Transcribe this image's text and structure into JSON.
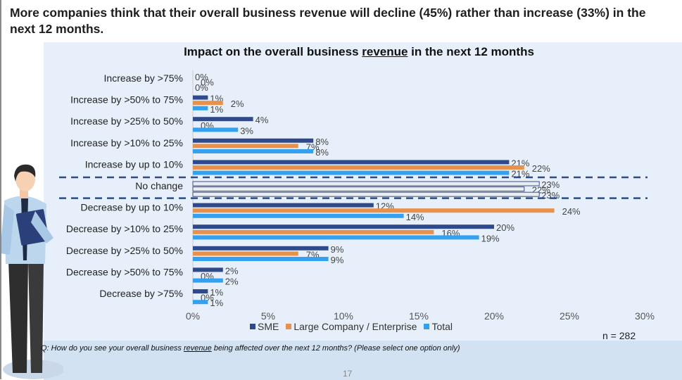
{
  "headline": "More companies think that their overall business revenue will decline (45%) rather than increase (33%) in the next 12 months.",
  "chart_title_pre": "Impact on the overall business ",
  "chart_title_emph": "revenue",
  "chart_title_post": " in the next 12 months",
  "n_label": "n = 282",
  "question_pre": "Q: How do you see your overall business ",
  "question_emph": "revenue",
  "question_post": " being affected over the next 12 months? (Please select one option only)",
  "page_number": "17",
  "colors": {
    "sme": "#2e4a8a",
    "large": "#e8914a",
    "total": "#33a1f0",
    "nochange_fill": "#e9ecf0",
    "nochange_stroke": "#3a4f86",
    "dash": "#2e4a8a"
  },
  "chart_data": {
    "type": "bar",
    "orientation": "horizontal",
    "title": "Impact on the overall business revenue in the next 12 months",
    "categories": [
      "Increase by >75%",
      "Increase by >50% to 75%",
      "Increase by >25% to 50%",
      "Increase by >10% to 25%",
      "Increase by up to 10%",
      "No change",
      "Decrease by up to 10%",
      "Decrease by >10% to 25%",
      "Decrease by >25% to 50%",
      "Decrease by >50% to 75%",
      "Decrease by >75%"
    ],
    "series": [
      {
        "name": "SME",
        "values": [
          0,
          1,
          4,
          8,
          21,
          23,
          12,
          20,
          9,
          2,
          1
        ]
      },
      {
        "name": "Large Company / Enterprise",
        "values": [
          0,
          2,
          0,
          7,
          22,
          22,
          24,
          16,
          7,
          0,
          0
        ]
      },
      {
        "name": "Total",
        "values": [
          0,
          1,
          3,
          8,
          21,
          23,
          14,
          19,
          9,
          2,
          1
        ]
      }
    ],
    "value_labels": [
      [
        "0%",
        "0%",
        "0%"
      ],
      [
        "1%",
        "2%",
        "1%"
      ],
      [
        "4%",
        "0%",
        "3%"
      ],
      [
        "8%",
        "7%",
        "8%"
      ],
      [
        "21%",
        "22%",
        "21%"
      ],
      [
        "23%",
        "22%",
        "23%"
      ],
      [
        "12%",
        "24%",
        "14%"
      ],
      [
        "20%",
        "16%",
        "19%"
      ],
      [
        "9%",
        "7%",
        "9%"
      ],
      [
        "2%",
        "0%",
        "2%"
      ],
      [
        "1%",
        "0%",
        "1%"
      ]
    ],
    "highlight_category": "No change",
    "xlim": [
      0,
      30
    ],
    "xticks": [
      "0%",
      "5%",
      "10%",
      "15%",
      "20%",
      "25%",
      "30%"
    ],
    "legend": [
      "SME",
      "Large Company / Enterprise",
      "Total"
    ]
  }
}
